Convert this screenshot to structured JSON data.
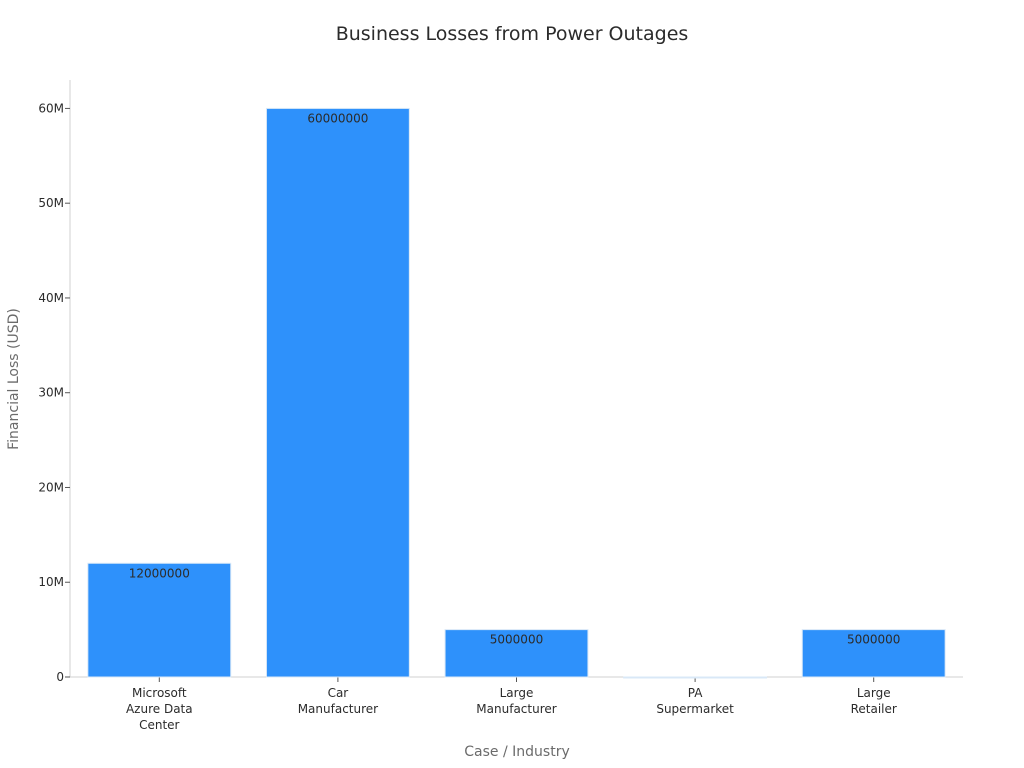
{
  "chart_data": {
    "type": "bar",
    "title": "Business Losses from Power Outages",
    "xlabel": "Case / Industry",
    "ylabel": "Financial Loss (USD)",
    "categories": [
      [
        "Microsoft",
        "Azure Data",
        "Center"
      ],
      [
        "Car",
        "Manufacturer"
      ],
      [
        "Large",
        "Manufacturer"
      ],
      [
        "PA",
        "Supermarket"
      ],
      [
        "Large",
        "Retailer"
      ]
    ],
    "values": [
      12000000,
      60000000,
      5000000,
      0,
      5000000
    ],
    "data_labels": [
      "12000000",
      "60000000",
      "5000000",
      "",
      "5000000"
    ],
    "yticks": [
      0,
      10000000,
      20000000,
      30000000,
      40000000,
      50000000,
      60000000
    ],
    "ytick_labels": [
      "0",
      "10M",
      "20M",
      "30M",
      "40M",
      "50M",
      "60M"
    ],
    "ylim": [
      0,
      63000000
    ],
    "bar_color": "#2e91fb",
    "grid": false,
    "legend": "none"
  }
}
